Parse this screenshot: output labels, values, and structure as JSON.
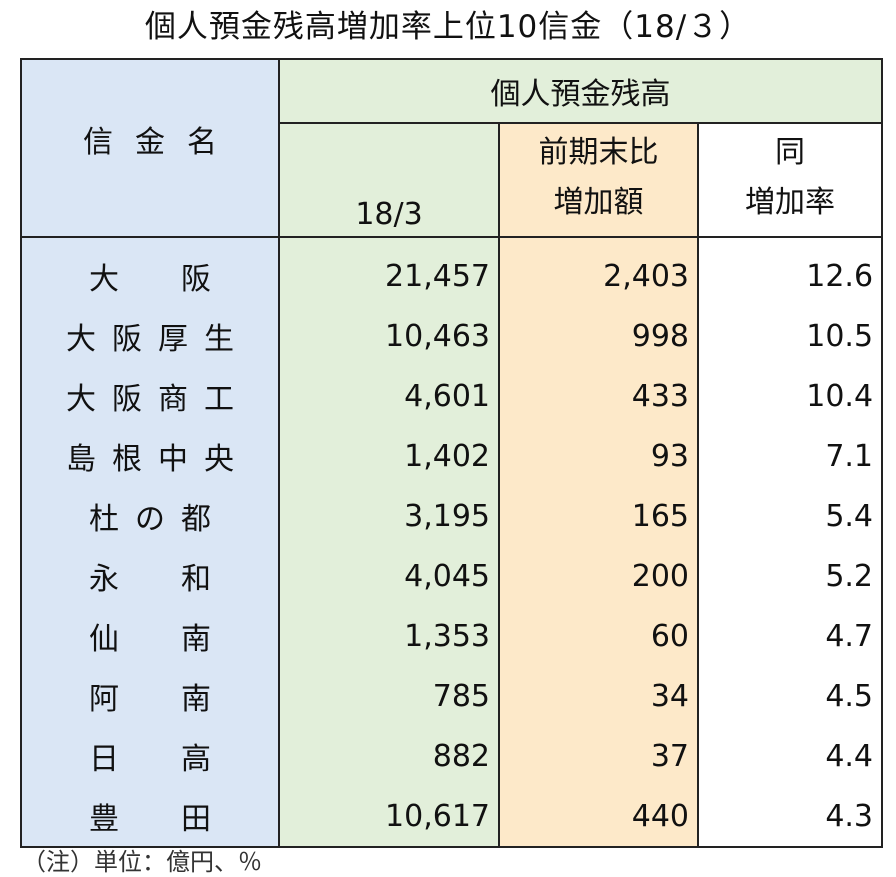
{
  "title": "個人預金残高増加率上位10信金（18/３）",
  "headers": {
    "name": "信金名",
    "group": "個人預金残高",
    "balance": "18/3",
    "increase_line1": "前期末比",
    "increase_line2": "増加額",
    "rate_line1": "同",
    "rate_line2": "増加率"
  },
  "rows": [
    {
      "name": "大　阪",
      "balance": "21,457",
      "increase": "2,403",
      "rate": "12.6"
    },
    {
      "name": "大阪厚生",
      "balance": "10,463",
      "increase": "998",
      "rate": "10.5"
    },
    {
      "name": "大阪商工",
      "balance": "4,601",
      "increase": "433",
      "rate": "10.4"
    },
    {
      "name": "島根中央",
      "balance": "1,402",
      "increase": "93",
      "rate": "7.1"
    },
    {
      "name": "杜の都",
      "balance": "3,195",
      "increase": "165",
      "rate": "5.4"
    },
    {
      "name": "永　和",
      "balance": "4,045",
      "increase": "200",
      "rate": "5.2"
    },
    {
      "name": "仙　南",
      "balance": "1,353",
      "increase": "60",
      "rate": "4.7"
    },
    {
      "name": "阿　南",
      "balance": "785",
      "increase": "34",
      "rate": "4.5"
    },
    {
      "name": "日　高",
      "balance": "882",
      "increase": "37",
      "rate": "4.4"
    },
    {
      "name": "豊　田",
      "balance": "10,617",
      "increase": "440",
      "rate": "4.3"
    }
  ],
  "note": "（注）単位：億円、％"
}
